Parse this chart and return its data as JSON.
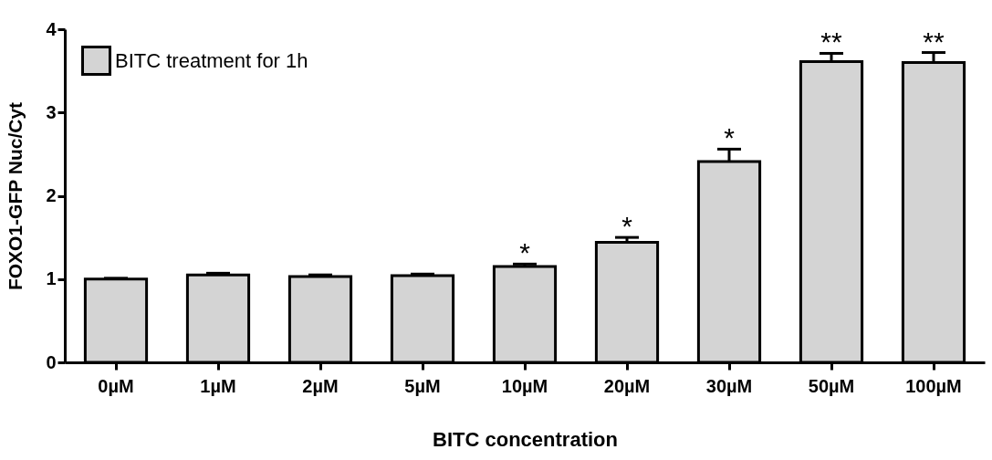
{
  "chart_data": {
    "type": "bar",
    "xlabel": "BITC concentration",
    "ylabel": "FOXO1-GFP Nuc/Cyt",
    "categories": [
      "0µM",
      "1µM",
      "2µM",
      "5µM",
      "10µM",
      "20µM",
      "30µM",
      "50µM",
      "100µM"
    ],
    "series": [
      {
        "name": "BITC treatment for 1h",
        "color": "#d4d4d4",
        "values": [
          1.0,
          1.05,
          1.03,
          1.04,
          1.15,
          1.44,
          2.41,
          3.61,
          3.6
        ],
        "errors": [
          0.01,
          0.02,
          0.02,
          0.02,
          0.03,
          0.06,
          0.15,
          0.1,
          0.12
        ]
      }
    ],
    "ylim": [
      0,
      4
    ],
    "yticks": [
      0,
      1,
      2,
      3,
      4
    ],
    "grid": false,
    "legend": "top left",
    "annotations": [
      {
        "text": "*",
        "x": "10µM",
        "y": 1.18
      },
      {
        "text": "*",
        "x": "20µM",
        "y": 1.5
      },
      {
        "text": "*",
        "x": "30µM",
        "y": 2.56
      },
      {
        "text": "**",
        "x": "50µM",
        "y": 3.71
      },
      {
        "text": "**",
        "x": "100µM",
        "y": 3.72
      }
    ]
  }
}
